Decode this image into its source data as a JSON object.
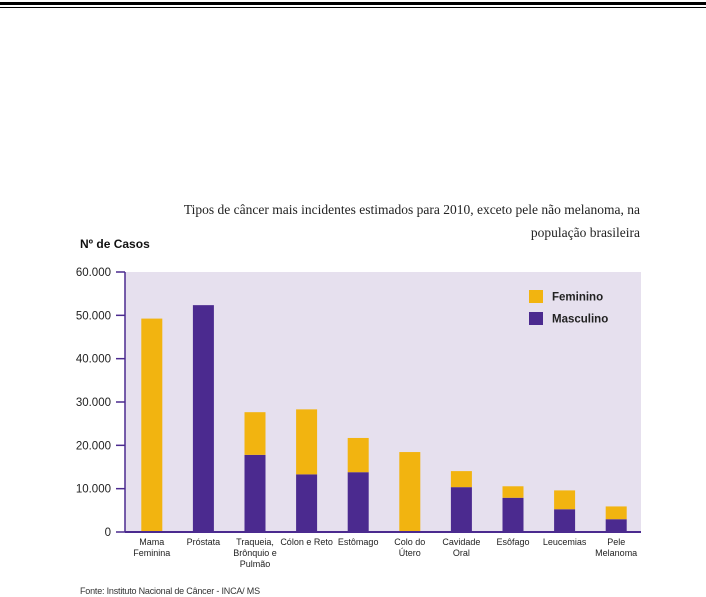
{
  "caption": {
    "line1": "Tipos de câncer mais incidentes estimados para 2010, exceto pele não melanoma, na",
    "line2": "população brasileira"
  },
  "source": "Fonte: Instituto Nacional de Câncer - INCA/ MS",
  "chart_data": {
    "type": "bar",
    "stacked": true,
    "ylabel": "Nº de Casos",
    "ylim": [
      0,
      60000
    ],
    "yticks": [
      0,
      10000,
      20000,
      30000,
      40000,
      50000,
      60000
    ],
    "ytick_labels": [
      "0",
      "10.000",
      "20.000",
      "30.000",
      "40.000",
      "50.000",
      "60.000"
    ],
    "categories": [
      [
        "Mama",
        "Feminina"
      ],
      [
        "Próstata"
      ],
      [
        "Traqueia,",
        "Brônquio e",
        "Pulmão"
      ],
      [
        "Cólon e Reto"
      ],
      [
        "Estômago"
      ],
      [
        "Colo do",
        "Útero"
      ],
      [
        "Cavidade",
        "Oral"
      ],
      [
        "Esôfago"
      ],
      [
        "Leucemias"
      ],
      [
        "Pele",
        "Melanoma"
      ]
    ],
    "series": [
      {
        "name": "Masculino",
        "color": "#4b2a8f",
        "values": [
          0,
          52350,
          17800,
          13300,
          13800,
          0,
          10350,
          7900,
          5250,
          2950
        ]
      },
      {
        "name": "Feminino",
        "color": "#f2b410",
        "values": [
          49250,
          0,
          9850,
          15000,
          7900,
          18450,
          3700,
          2650,
          4350,
          2950
        ]
      }
    ],
    "legend": {
      "position": "top-right",
      "entries": [
        "Feminino",
        "Masculino"
      ]
    },
    "background": "#e6e0ee"
  }
}
